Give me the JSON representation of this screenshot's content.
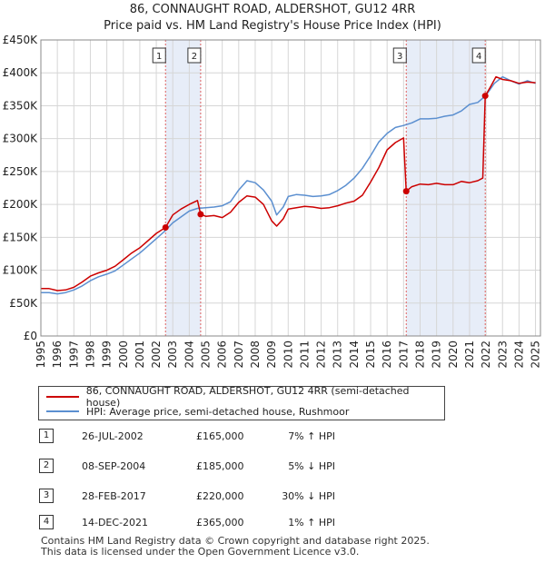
{
  "title_line1": "86, CONNAUGHT ROAD, ALDERSHOT, GU12 4RR",
  "title_line2": "Price paid vs. HM Land Registry's House Price Index (HPI)",
  "chart_data": {
    "type": "line",
    "title": "86, CONNAUGHT ROAD, ALDERSHOT, GU12 4RR — Price paid vs. HM Land Registry's House Price Index (HPI)",
    "xlabel": "",
    "ylabel": "",
    "xlim": [
      1995,
      2025.3
    ],
    "ylim": [
      0,
      450000
    ],
    "x_ticks": [
      1995,
      1996,
      1997,
      1998,
      1999,
      2000,
      2001,
      2002,
      2003,
      2004,
      2005,
      2006,
      2007,
      2008,
      2009,
      2010,
      2011,
      2012,
      2013,
      2014,
      2015,
      2016,
      2017,
      2018,
      2019,
      2020,
      2021,
      2022,
      2023,
      2024,
      2025
    ],
    "y_ticks": [
      0,
      50000,
      100000,
      150000,
      200000,
      250000,
      300000,
      350000,
      400000,
      450000
    ],
    "y_tick_labels": [
      "£0",
      "£50K",
      "£100K",
      "£150K",
      "£200K",
      "£250K",
      "£300K",
      "£350K",
      "£400K",
      "£450K"
    ],
    "grid": true,
    "series": [
      {
        "name": "86, CONNAUGHT ROAD, ALDERSHOT, GU12 4RR (semi-detached house)",
        "color": "#cc0000",
        "x": [
          1995,
          1995.5,
          1996,
          1996.5,
          1997,
          1997.5,
          1998,
          1998.5,
          1999,
          1999.5,
          2000,
          2000.5,
          2001,
          2001.5,
          2002,
          2002.56,
          2003,
          2003.5,
          2004,
          2004.5,
          2004.69,
          2005,
          2005.5,
          2006,
          2006.5,
          2007,
          2007.5,
          2008,
          2008.5,
          2009,
          2009.3,
          2009.7,
          2010,
          2010.5,
          2011,
          2011.5,
          2012,
          2012.5,
          2013,
          2013.5,
          2014,
          2014.5,
          2015,
          2015.5,
          2016,
          2016.5,
          2017.0,
          2017.16,
          2017.5,
          2018,
          2018.5,
          2019,
          2019.5,
          2020,
          2020.5,
          2021,
          2021.5,
          2021.8,
          2021.95,
          2022.3,
          2022.6,
          2023,
          2023.5,
          2024,
          2024.5,
          2025
        ],
        "values": [
          72000,
          72000,
          69000,
          70000,
          74000,
          82000,
          91000,
          96000,
          100000,
          106000,
          116000,
          126000,
          134000,
          145000,
          156000,
          165000,
          184000,
          193000,
          200000,
          206000,
          185000,
          182000,
          183000,
          180000,
          188000,
          203000,
          213000,
          211000,
          200000,
          175000,
          167000,
          178000,
          193000,
          195000,
          197000,
          196000,
          194000,
          195000,
          198000,
          202000,
          205000,
          214000,
          234000,
          256000,
          283000,
          294000,
          301000,
          220000,
          227000,
          231000,
          230000,
          232000,
          230000,
          230000,
          235000,
          233000,
          236000,
          240000,
          365000,
          380000,
          394000,
          390000,
          388000,
          384000,
          386000,
          385000
        ]
      },
      {
        "name": "HPI: Average price, semi-detached house, Rushmoor",
        "color": "#5b8fd0",
        "x": [
          1995,
          1995.5,
          1996,
          1996.5,
          1997,
          1997.5,
          1998,
          1998.5,
          1999,
          1999.5,
          2000,
          2000.5,
          2001,
          2001.5,
          2002,
          2002.5,
          2003,
          2003.5,
          2004,
          2004.5,
          2005,
          2005.5,
          2006,
          2006.5,
          2007,
          2007.5,
          2008,
          2008.5,
          2009,
          2009.3,
          2009.7,
          2010,
          2010.5,
          2011,
          2011.5,
          2012,
          2012.5,
          2013,
          2013.5,
          2014,
          2014.5,
          2015,
          2015.5,
          2016,
          2016.5,
          2017,
          2017.5,
          2018,
          2018.5,
          2019,
          2019.5,
          2020,
          2020.5,
          2021,
          2021.5,
          2022,
          2022.5,
          2023,
          2023.5,
          2024,
          2024.5,
          2025
        ],
        "values": [
          66000,
          66000,
          64000,
          66000,
          70000,
          76000,
          84000,
          90000,
          94000,
          99000,
          108000,
          117000,
          126000,
          137000,
          148000,
          159000,
          172000,
          181000,
          190000,
          194000,
          195000,
          196000,
          198000,
          204000,
          222000,
          236000,
          233000,
          222000,
          205000,
          184000,
          196000,
          212000,
          215000,
          214000,
          212000,
          213000,
          215000,
          221000,
          229000,
          240000,
          255000,
          274000,
          295000,
          308000,
          317000,
          320000,
          324000,
          330000,
          330000,
          331000,
          334000,
          336000,
          342000,
          352000,
          355000,
          366000,
          384000,
          394000,
          388000,
          383000,
          388000,
          384000
        ]
      }
    ],
    "sales": [
      {
        "label": "1",
        "x": 2002.56,
        "y": 165000
      },
      {
        "label": "2",
        "x": 2004.69,
        "y": 185000
      },
      {
        "label": "3",
        "x": 2017.16,
        "y": 220000
      },
      {
        "label": "4",
        "x": 2021.95,
        "y": 365000
      }
    ],
    "shaded_periods": [
      [
        2002.56,
        2004.69
      ],
      [
        2017.16,
        2021.95
      ]
    ]
  },
  "legend": {
    "property_label": "86, CONNAUGHT ROAD, ALDERSHOT, GU12 4RR (semi-detached house)",
    "hpi_label": "HPI: Average price, semi-detached house, Rushmoor",
    "property_color": "#cc0000",
    "hpi_color": "#5b8fd0"
  },
  "transactions": [
    {
      "num": "1",
      "date": "26-JUL-2002",
      "price": "£165,000",
      "hpi": "7% ↑ HPI"
    },
    {
      "num": "2",
      "date": "08-SEP-2004",
      "price": "£185,000",
      "hpi": "5% ↓ HPI"
    },
    {
      "num": "3",
      "date": "28-FEB-2017",
      "price": "£220,000",
      "hpi": "30% ↓ HPI"
    },
    {
      "num": "4",
      "date": "14-DEC-2021",
      "price": "£365,000",
      "hpi": "1% ↑ HPI"
    }
  ],
  "footer_line1": "Contains HM Land Registry data © Crown copyright and database right 2025.",
  "footer_line2": "This data is licensed under the Open Government Licence v3.0."
}
